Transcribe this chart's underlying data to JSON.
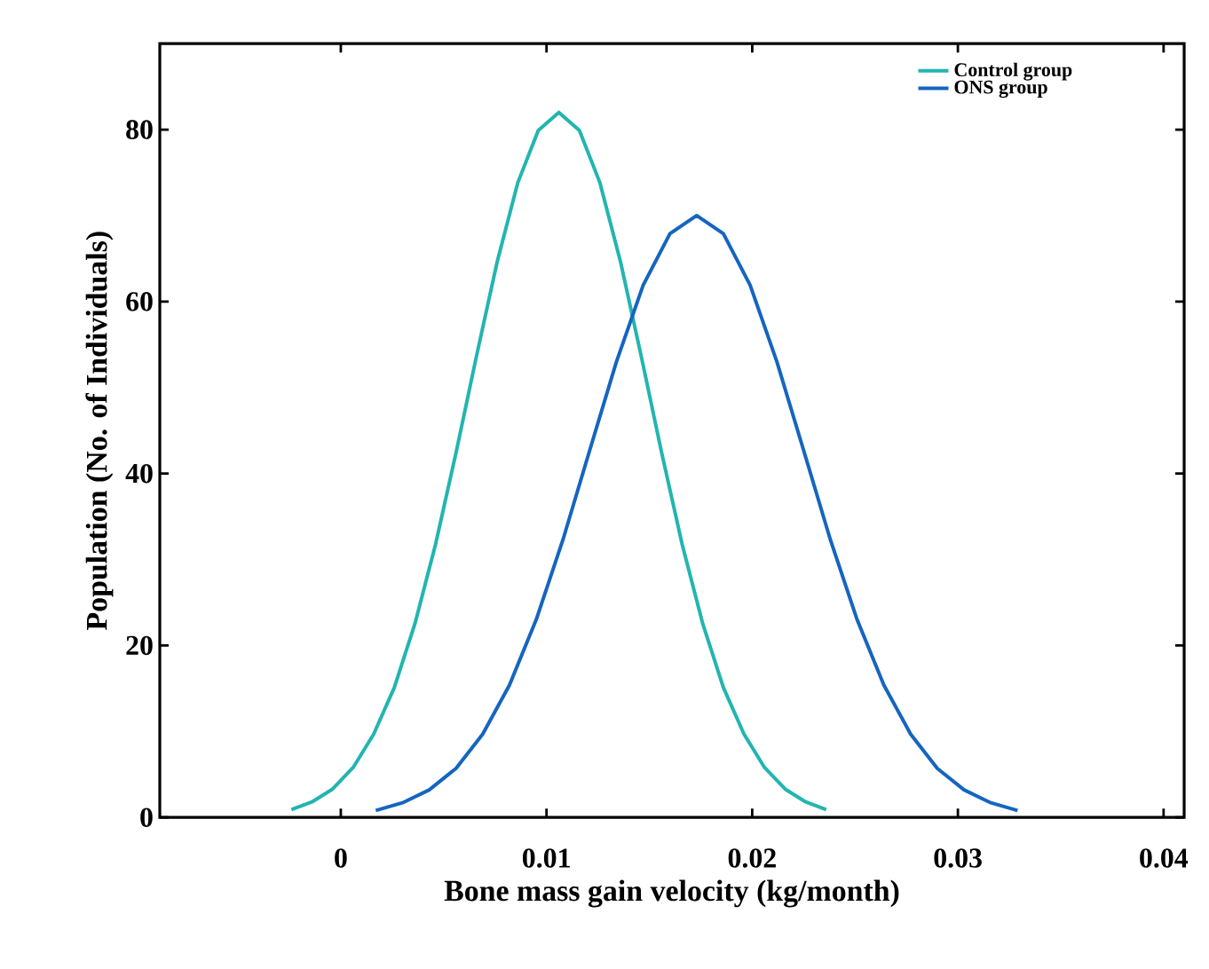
{
  "chart_data": {
    "type": "line",
    "xlabel": "Bone mass gain velocity (kg/month)",
    "ylabel": "Population (No. of Individuals)",
    "xlim": [
      -0.0088,
      0.041
    ],
    "ylim": [
      0,
      90
    ],
    "xticks": [
      0,
      0.01,
      0.02,
      0.03,
      0.04
    ],
    "yticks": [
      0,
      20,
      40,
      60,
      80
    ],
    "legend": "top right",
    "grid": false,
    "line_style": "solid",
    "marker": "none",
    "series": [
      {
        "name": "Control group",
        "color": "#22b5b0",
        "x": [
          -0.0024,
          -0.0014,
          -0.0004,
          0.0006,
          0.0016,
          0.0026,
          0.0036,
          0.0046,
          0.0056,
          0.0066,
          0.0076,
          0.0086,
          0.0096,
          0.0106,
          0.0116,
          0.0126,
          0.0136,
          0.0146,
          0.0156,
          0.0166,
          0.0176,
          0.0186,
          0.0196,
          0.0206,
          0.0216,
          0.0226,
          0.0236
        ],
        "values": [
          0.9,
          1.8,
          3.3,
          5.8,
          9.7,
          15.1,
          22.5,
          31.7,
          42.4,
          53.7,
          64.6,
          73.8,
          79.9,
          82,
          79.9,
          73.8,
          64.6,
          53.7,
          42.4,
          31.7,
          22.5,
          15.1,
          9.7,
          5.8,
          3.3,
          1.8,
          0.9
        ]
      },
      {
        "name": "ONS group",
        "color": "#1565c0",
        "x": [
          0.0017,
          0.003,
          0.0043,
          0.0056,
          0.0069,
          0.0082,
          0.0095,
          0.0108,
          0.0121,
          0.0134,
          0.0147,
          0.016,
          0.0173,
          0.0186,
          0.0199,
          0.0212,
          0.0225,
          0.0238,
          0.0251,
          0.0264,
          0.0277,
          0.029,
          0.0303,
          0.0316,
          0.0329
        ],
        "values": [
          0.8,
          1.7,
          3.2,
          5.7,
          9.7,
          15.4,
          23,
          32.3,
          42.7,
          53,
          61.9,
          67.9,
          70,
          67.9,
          61.9,
          53,
          42.7,
          32.3,
          23,
          15.4,
          9.7,
          5.7,
          3.2,
          1.7,
          0.8
        ]
      }
    ]
  }
}
